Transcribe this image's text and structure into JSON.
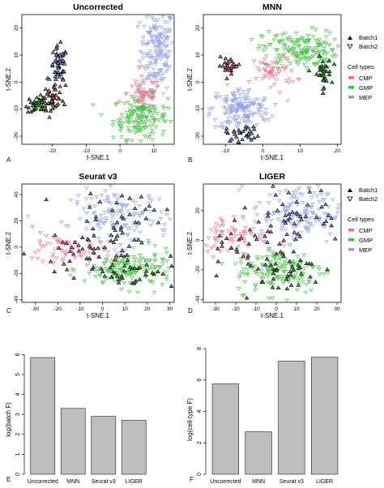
{
  "chart_data": [
    {
      "id": "A",
      "type": "scatter",
      "title": "Uncorrected",
      "xlabel": "t-SNE.1",
      "ylabel": "t-SNE.2",
      "xlim": [
        -29,
        16
      ],
      "ylim": [
        -23,
        25
      ],
      "xticks": [
        "-20",
        "-10",
        "0",
        "10"
      ],
      "xtick_values": [
        -20,
        -10,
        0,
        10
      ],
      "yticks": [
        "-20",
        "-10",
        "0",
        "10",
        "20"
      ],
      "ytick_values": [
        -20,
        -10,
        0,
        10,
        20
      ],
      "clusters": [
        {
          "cell": "MEP",
          "batch": 2,
          "cx": 11,
          "cy": 12,
          "sx": 2.5,
          "sy": 8,
          "n": 170
        },
        {
          "cell": "GMP",
          "batch": 2,
          "cx": 6,
          "cy": -13,
          "sx": 4,
          "sy": 4,
          "n": 170
        },
        {
          "cell": "CMP",
          "batch": 2,
          "cx": 7,
          "cy": -4,
          "sx": 2.5,
          "sy": 3,
          "n": 55
        },
        {
          "cell": "MEP",
          "batch": 1,
          "cx": -18,
          "cy": 5,
          "sx": 1.3,
          "sy": 4,
          "n": 55
        },
        {
          "cell": "GMP",
          "batch": 1,
          "cx": -23,
          "cy": -8,
          "sx": 2.5,
          "sy": 1.5,
          "n": 55
        },
        {
          "cell": "CMP",
          "batch": 1,
          "cx": -20,
          "cy": -5,
          "sx": 1.5,
          "sy": 2,
          "n": 30
        }
      ]
    },
    {
      "id": "B",
      "type": "scatter",
      "title": "MNN",
      "xlabel": "t-SNE.1",
      "ylabel": "t-SNE.2",
      "xlim": [
        -16,
        21
      ],
      "ylim": [
        -23,
        25
      ],
      "xticks": [
        "-10",
        "0",
        "10",
        "20"
      ],
      "xtick_values": [
        -10,
        0,
        10,
        20
      ],
      "yticks": [
        "-20",
        "-10",
        "0",
        "10",
        "20"
      ],
      "ytick_values": [
        -20,
        -10,
        0,
        10,
        20
      ],
      "clusters": [
        {
          "cell": "MEP",
          "batch": 2,
          "cx": -6,
          "cy": -10,
          "sx": 4,
          "sy": 4,
          "n": 170
        },
        {
          "cell": "GMP",
          "batch": 2,
          "cx": 10,
          "cy": 12,
          "sx": 5,
          "sy": 3.5,
          "n": 170
        },
        {
          "cell": "CMP",
          "batch": 2,
          "cx": 3,
          "cy": 4,
          "sx": 3,
          "sy": 3,
          "n": 55
        },
        {
          "cell": "MEP",
          "batch": 1,
          "cx": -5,
          "cy": -19,
          "sx": 2.5,
          "sy": 1.5,
          "n": 30
        },
        {
          "cell": "GMP",
          "batch": 1,
          "cx": 16,
          "cy": 3,
          "sx": 1.2,
          "sy": 3,
          "n": 35
        },
        {
          "cell": "CMP",
          "batch": 1,
          "cx": -9,
          "cy": 6,
          "sx": 1.5,
          "sy": 1.5,
          "n": 25
        }
      ]
    },
    {
      "id": "C",
      "type": "scatter",
      "title": "Seurat v3",
      "xlabel": "t-SNE.1",
      "ylabel": "t-SNE.2",
      "xlim": [
        -36,
        32
      ],
      "ylim": [
        -42,
        48
      ],
      "xticks": [
        "-30",
        "-20",
        "-10",
        "0",
        "10",
        "20",
        "30"
      ],
      "xtick_values": [
        -30,
        -20,
        -10,
        0,
        10,
        20,
        30
      ],
      "yticks": [
        "-40",
        "-20",
        "0",
        "20",
        "40"
      ],
      "ytick_values": [
        -40,
        -20,
        0,
        20,
        40
      ],
      "clusters": [
        {
          "cell": "MEP",
          "batch": 2,
          "cx": 8,
          "cy": 22,
          "sx": 11,
          "sy": 11,
          "n": 150
        },
        {
          "cell": "GMP",
          "batch": 2,
          "cx": 12,
          "cy": -17,
          "sx": 10,
          "sy": 7,
          "n": 150
        },
        {
          "cell": "CMP",
          "batch": 2,
          "cx": -18,
          "cy": -2,
          "sx": 9,
          "sy": 7,
          "n": 60
        },
        {
          "cell": "MEP",
          "batch": 1,
          "cx": 8,
          "cy": 22,
          "sx": 11,
          "sy": 11,
          "n": 45
        },
        {
          "cell": "GMP",
          "batch": 1,
          "cx": 12,
          "cy": -17,
          "sx": 10,
          "sy": 7,
          "n": 45
        },
        {
          "cell": "CMP",
          "batch": 1,
          "cx": -14,
          "cy": -5,
          "sx": 9,
          "sy": 8,
          "n": 30
        }
      ]
    },
    {
      "id": "D",
      "type": "scatter",
      "title": "LIGER",
      "xlabel": "t-SNE.1",
      "ylabel": "t-SNE.2",
      "xlim": [
        -36,
        32
      ],
      "ylim": [
        -42,
        38
      ],
      "xticks": [
        "-30",
        "-20",
        "-10",
        "0",
        "10",
        "20",
        "30"
      ],
      "xtick_values": [
        -30,
        -20,
        -10,
        0,
        10,
        20,
        30
      ],
      "yticks": [
        "-40",
        "-20",
        "0",
        "20"
      ],
      "ytick_values": [
        -40,
        -20,
        0,
        20
      ],
      "clusters": [
        {
          "cell": "MEP",
          "batch": 2,
          "cx": 10,
          "cy": 18,
          "sx": 11,
          "sy": 10,
          "n": 150
        },
        {
          "cell": "GMP",
          "batch": 2,
          "cx": 2,
          "cy": -20,
          "sx": 11,
          "sy": 8,
          "n": 150
        },
        {
          "cell": "CMP",
          "batch": 2,
          "cx": -22,
          "cy": 4,
          "sx": 9,
          "sy": 7,
          "n": 60
        },
        {
          "cell": "MEP",
          "batch": 1,
          "cx": 10,
          "cy": 18,
          "sx": 11,
          "sy": 10,
          "n": 45
        },
        {
          "cell": "GMP",
          "batch": 1,
          "cx": 2,
          "cy": -20,
          "sx": 11,
          "sy": 8,
          "n": 45
        },
        {
          "cell": "CMP",
          "batch": 1,
          "cx": -20,
          "cy": 0,
          "sx": 9,
          "sy": 8,
          "n": 30
        }
      ]
    },
    {
      "id": "E",
      "type": "bar",
      "ylabel": "log(batch F)",
      "categories": [
        "Uncorrected",
        "MNN",
        "Seurat v3",
        "LIGER"
      ],
      "values": [
        5.85,
        3.3,
        2.9,
        2.7
      ],
      "ylim": [
        0,
        6.3
      ],
      "yticks": [
        "0",
        "1",
        "2",
        "3",
        "4",
        "5",
        "6"
      ],
      "ytick_values": [
        0,
        1,
        2,
        3,
        4,
        5,
        6
      ]
    },
    {
      "id": "F",
      "type": "bar",
      "ylabel": "log(cell-type F)",
      "categories": [
        "Uncorrected",
        "MNN",
        "Seurat v3",
        "LIGER"
      ],
      "values": [
        5.75,
        2.7,
        7.2,
        7.45
      ],
      "ylim": [
        0,
        8
      ],
      "yticks": [
        "0",
        "2",
        "4",
        "6",
        "8"
      ],
      "ytick_values": [
        0,
        2,
        4,
        6,
        8
      ]
    }
  ],
  "legend": {
    "batch_items": [
      {
        "label": "Batch1",
        "marker": "triangle-up-filled"
      },
      {
        "label": "Batch2",
        "marker": "triangle-down-open"
      }
    ],
    "cell_title": "Cell types",
    "cell_items": [
      {
        "label": "CMP",
        "color": "#e8708e"
      },
      {
        "label": "GMP",
        "color": "#3fbf3f"
      },
      {
        "label": "MEP",
        "color": "#8f9ee0"
      }
    ]
  },
  "colors": {
    "CMP": "#e8708e",
    "GMP": "#3fbf3f",
    "MEP": "#8f9ee0",
    "bar_fill": "#bebebe",
    "batch1_marker": "#000000"
  }
}
